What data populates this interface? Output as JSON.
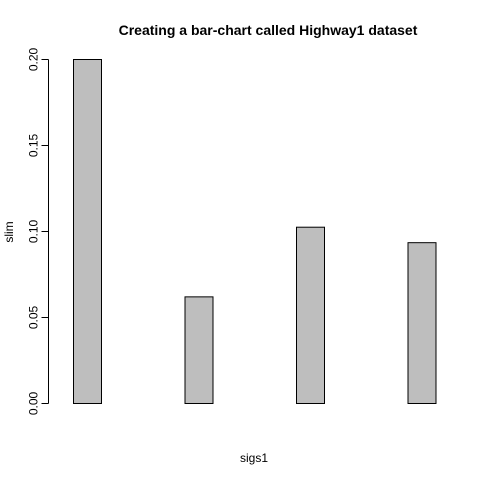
{
  "chart_data": {
    "type": "bar",
    "title": "Creating a bar-chart called Highway1 dataset",
    "xlabel": "sigs1",
    "ylabel": "slim",
    "categories": [
      "",
      "",
      "",
      ""
    ],
    "values": [
      0.2,
      0.062,
      0.1025,
      0.0935
    ],
    "ylim": [
      0,
      0.2
    ],
    "yticks": [
      "0.00",
      "0.05",
      "0.10",
      "0.15",
      "0.20"
    ],
    "ytick_values": [
      0,
      0.05,
      0.1,
      0.15,
      0.2
    ],
    "grid": false,
    "bar_color": "#bebebe",
    "bar_edge_color": "#000000"
  }
}
